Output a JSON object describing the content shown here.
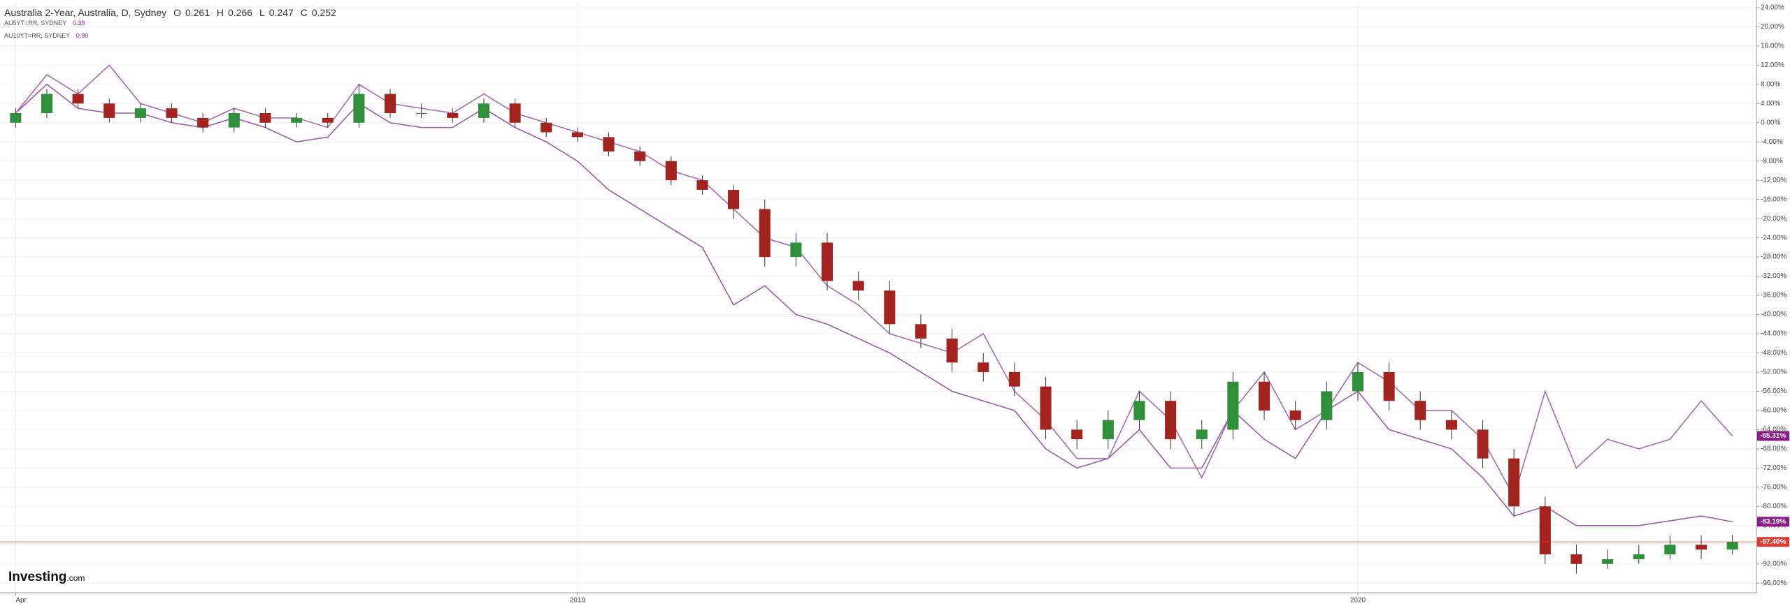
{
  "chart_data": {
    "type": "candlestick",
    "title": "Australia 2-Year, Australia, D, Sydney",
    "ohlc_legend": [
      {
        "label": "O",
        "value": "0.261"
      },
      {
        "label": "H",
        "value": "0.266"
      },
      {
        "label": "L",
        "value": "0.247"
      },
      {
        "label": "C",
        "value": "0.252"
      }
    ],
    "main_color_up": "#2f8f3a",
    "main_color_down": "#a3231f",
    "open": [
      0,
      2,
      6,
      4,
      1,
      3,
      1,
      -1,
      2,
      0,
      1,
      0,
      6,
      2,
      2,
      1,
      4,
      0,
      -2,
      -3,
      -6,
      -8,
      -12,
      -14,
      -18,
      -28,
      -25,
      -33,
      -35,
      -42,
      -45,
      -50,
      -52,
      -55,
      -64,
      -66,
      -62,
      -58,
      -66,
      -64,
      -54,
      -60,
      -62,
      -56,
      -52,
      -58,
      -62,
      -64,
      -70,
      -80,
      -90,
      -92,
      -91,
      -90,
      -88,
      -89
    ],
    "high": [
      3,
      7,
      7,
      5,
      4,
      4,
      2,
      3,
      3,
      2,
      2,
      8,
      7,
      4,
      3,
      5,
      5,
      1,
      -1,
      -2,
      -5,
      -7,
      -11,
      -13,
      -16,
      -23,
      -23,
      -31,
      -33,
      -40,
      -43,
      -48,
      -50,
      -53,
      -62,
      -60,
      -56,
      -56,
      -62,
      -52,
      -52,
      -58,
      -54,
      -50,
      -50,
      -56,
      -60,
      -62,
      -68,
      -78,
      -88,
      -89,
      -88,
      -86,
      -86,
      -86
    ],
    "low": [
      -1,
      1,
      3,
      0,
      0,
      0,
      -2,
      -2,
      -1,
      -1,
      -1,
      -1,
      1,
      1,
      0,
      0,
      -1,
      -3,
      -4,
      -7,
      -9,
      -13,
      -15,
      -20,
      -30,
      -30,
      -35,
      -37,
      -44,
      -47,
      -52,
      -54,
      -57,
      -66,
      -68,
      -68,
      -64,
      -68,
      -68,
      -66,
      -62,
      -64,
      -64,
      -58,
      -60,
      -64,
      -66,
      -72,
      -82,
      -92,
      -94,
      -93,
      -92,
      -91,
      -91,
      -90
    ],
    "close": [
      2,
      6,
      4,
      1,
      3,
      1,
      -1,
      2,
      0,
      1,
      0,
      6,
      2,
      2,
      1,
      4,
      0,
      -2,
      -3,
      -6,
      -8,
      -12,
      -14,
      -18,
      -28,
      -25,
      -33,
      -35,
      -42,
      -45,
      -50,
      -52,
      -55,
      -64,
      -66,
      -62,
      -58,
      -66,
      -64,
      -54,
      -60,
      -62,
      -56,
      -52,
      -58,
      -62,
      -64,
      -70,
      -80,
      -90,
      -92,
      -91,
      -90,
      -88,
      -89,
      -87.4
    ],
    "main_last_label": "-87.40%",
    "main_last_color": "#e53935",
    "series": [
      {
        "name": "AU5YT=RR, SYDNEY",
        "legend_value": "0.39",
        "color": "#9b5ba5",
        "last_label": "-83.19%",
        "tag_color": "#8e1b8c",
        "values": [
          2,
          8,
          3,
          2,
          2,
          0,
          -1,
          1,
          -1,
          -4,
          -3,
          4,
          0,
          -1,
          -1,
          3,
          -1,
          -4,
          -8,
          -14,
          -18,
          -22,
          -26,
          -38,
          -34,
          -40,
          -42,
          -45,
          -48,
          -52,
          -56,
          -58,
          -60,
          -68,
          -72,
          -70,
          -64,
          -72,
          -72,
          -60,
          -66,
          -70,
          -60,
          -56,
          -64,
          -66,
          -68,
          -74,
          -82,
          -80,
          -84,
          -84,
          -84,
          -83,
          -82,
          -83.19
        ]
      },
      {
        "name": "AU10YT=RR, SYDNEY",
        "legend_value": "0.90",
        "color": "#a66bb0",
        "last_label": "-65.31%",
        "tag_color": "#8e1b8c",
        "values": [
          2,
          10,
          6,
          12,
          4,
          2,
          0,
          3,
          1,
          1,
          -1,
          8,
          4,
          3,
          2,
          6,
          2,
          0,
          -2,
          -4,
          -6,
          -10,
          -12,
          -18,
          -24,
          -26,
          -34,
          -38,
          -44,
          -46,
          -48,
          -44,
          -56,
          -62,
          -70,
          -70,
          -56,
          -62,
          -74,
          -60,
          -52,
          -64,
          -60,
          -50,
          -54,
          -60,
          -60,
          -66,
          -78,
          -56,
          -72,
          -66,
          -68,
          -66,
          -58,
          -65.31
        ]
      }
    ],
    "xticks": [
      {
        "value": 0,
        "label": "Apr"
      },
      {
        "value": 18,
        "label": "2019"
      },
      {
        "value": 43,
        "label": "2020"
      }
    ],
    "ylim": [
      -98,
      25
    ],
    "yticks": [
      {
        "value": 24,
        "label": "24.00%"
      },
      {
        "value": 20,
        "label": "20.00%"
      },
      {
        "value": 16,
        "label": "16.00%"
      },
      {
        "value": 12,
        "label": "12.00%"
      },
      {
        "value": 8,
        "label": "8.00%"
      },
      {
        "value": 4,
        "label": "4.00%"
      },
      {
        "value": 0,
        "label": "0.00%"
      },
      {
        "value": -4,
        "label": "-4.00%"
      },
      {
        "value": -8,
        "label": "-8.00%"
      },
      {
        "value": -12,
        "label": "-12.00%"
      },
      {
        "value": -16,
        "label": "-16.00%"
      },
      {
        "value": -20,
        "label": "-20.00%"
      },
      {
        "value": -24,
        "label": "-24.00%"
      },
      {
        "value": -28,
        "label": "-28.00%"
      },
      {
        "value": -32,
        "label": "-32.00%"
      },
      {
        "value": -36,
        "label": "-36.00%"
      },
      {
        "value": -40,
        "label": "-40.00%"
      },
      {
        "value": -44,
        "label": "-44.00%"
      },
      {
        "value": -48,
        "label": "-48.00%"
      },
      {
        "value": -52,
        "label": "-52.00%"
      },
      {
        "value": -56,
        "label": "-56.00%"
      },
      {
        "value": -60,
        "label": "-60.00%"
      },
      {
        "value": -64,
        "label": "-64.00%"
      },
      {
        "value": -68,
        "label": "-68.00%"
      },
      {
        "value": -72,
        "label": "-72.00%"
      },
      {
        "value": -76,
        "label": "-76.00%"
      },
      {
        "value": -80,
        "label": "-80.00%"
      },
      {
        "value": -84,
        "label": "-84.00%"
      },
      {
        "value": -88,
        "label": "-88.00%"
      },
      {
        "value": -92,
        "label": "-92.00%"
      },
      {
        "value": -96,
        "label": "-96.00%"
      }
    ],
    "grid": true,
    "logo": "Investing",
    "logo_suffix": ".com"
  }
}
